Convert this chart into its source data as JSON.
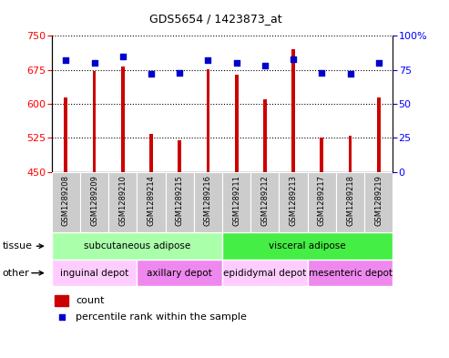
{
  "title": "GDS5654 / 1423873_at",
  "samples": [
    "GSM1289208",
    "GSM1289209",
    "GSM1289210",
    "GSM1289214",
    "GSM1289215",
    "GSM1289216",
    "GSM1289211",
    "GSM1289212",
    "GSM1289213",
    "GSM1289217",
    "GSM1289218",
    "GSM1289219"
  ],
  "counts": [
    615,
    672,
    683,
    533,
    520,
    676,
    665,
    610,
    720,
    525,
    530,
    615
  ],
  "percentiles": [
    82,
    80,
    85,
    72,
    73,
    82,
    80,
    78,
    83,
    73,
    72,
    80
  ],
  "ylim_left": [
    450,
    750
  ],
  "ylim_right": [
    0,
    100
  ],
  "yticks_left": [
    450,
    525,
    600,
    675,
    750
  ],
  "yticks_right": [
    0,
    25,
    50,
    75,
    100
  ],
  "bar_color": "#cc0000",
  "dot_color": "#0000cc",
  "tissue_groups": [
    {
      "label": "subcutaneous adipose",
      "start": 0,
      "end": 6,
      "color": "#aaffaa"
    },
    {
      "label": "visceral adipose",
      "start": 6,
      "end": 12,
      "color": "#44ee44"
    }
  ],
  "other_groups": [
    {
      "label": "inguinal depot",
      "start": 0,
      "end": 3,
      "color": "#ffccff"
    },
    {
      "label": "axillary depot",
      "start": 3,
      "end": 6,
      "color": "#ee88ee"
    },
    {
      "label": "epididymal depot",
      "start": 6,
      "end": 9,
      "color": "#ffccff"
    },
    {
      "label": "mesenteric depot",
      "start": 9,
      "end": 12,
      "color": "#ee88ee"
    }
  ],
  "legend_bar_label": "count",
  "legend_dot_label": "percentile rank within the sample",
  "tissue_row_label": "tissue",
  "other_row_label": "other",
  "background_color": "#ffffff",
  "sample_bg_color": "#cccccc",
  "bar_width": 0.12
}
